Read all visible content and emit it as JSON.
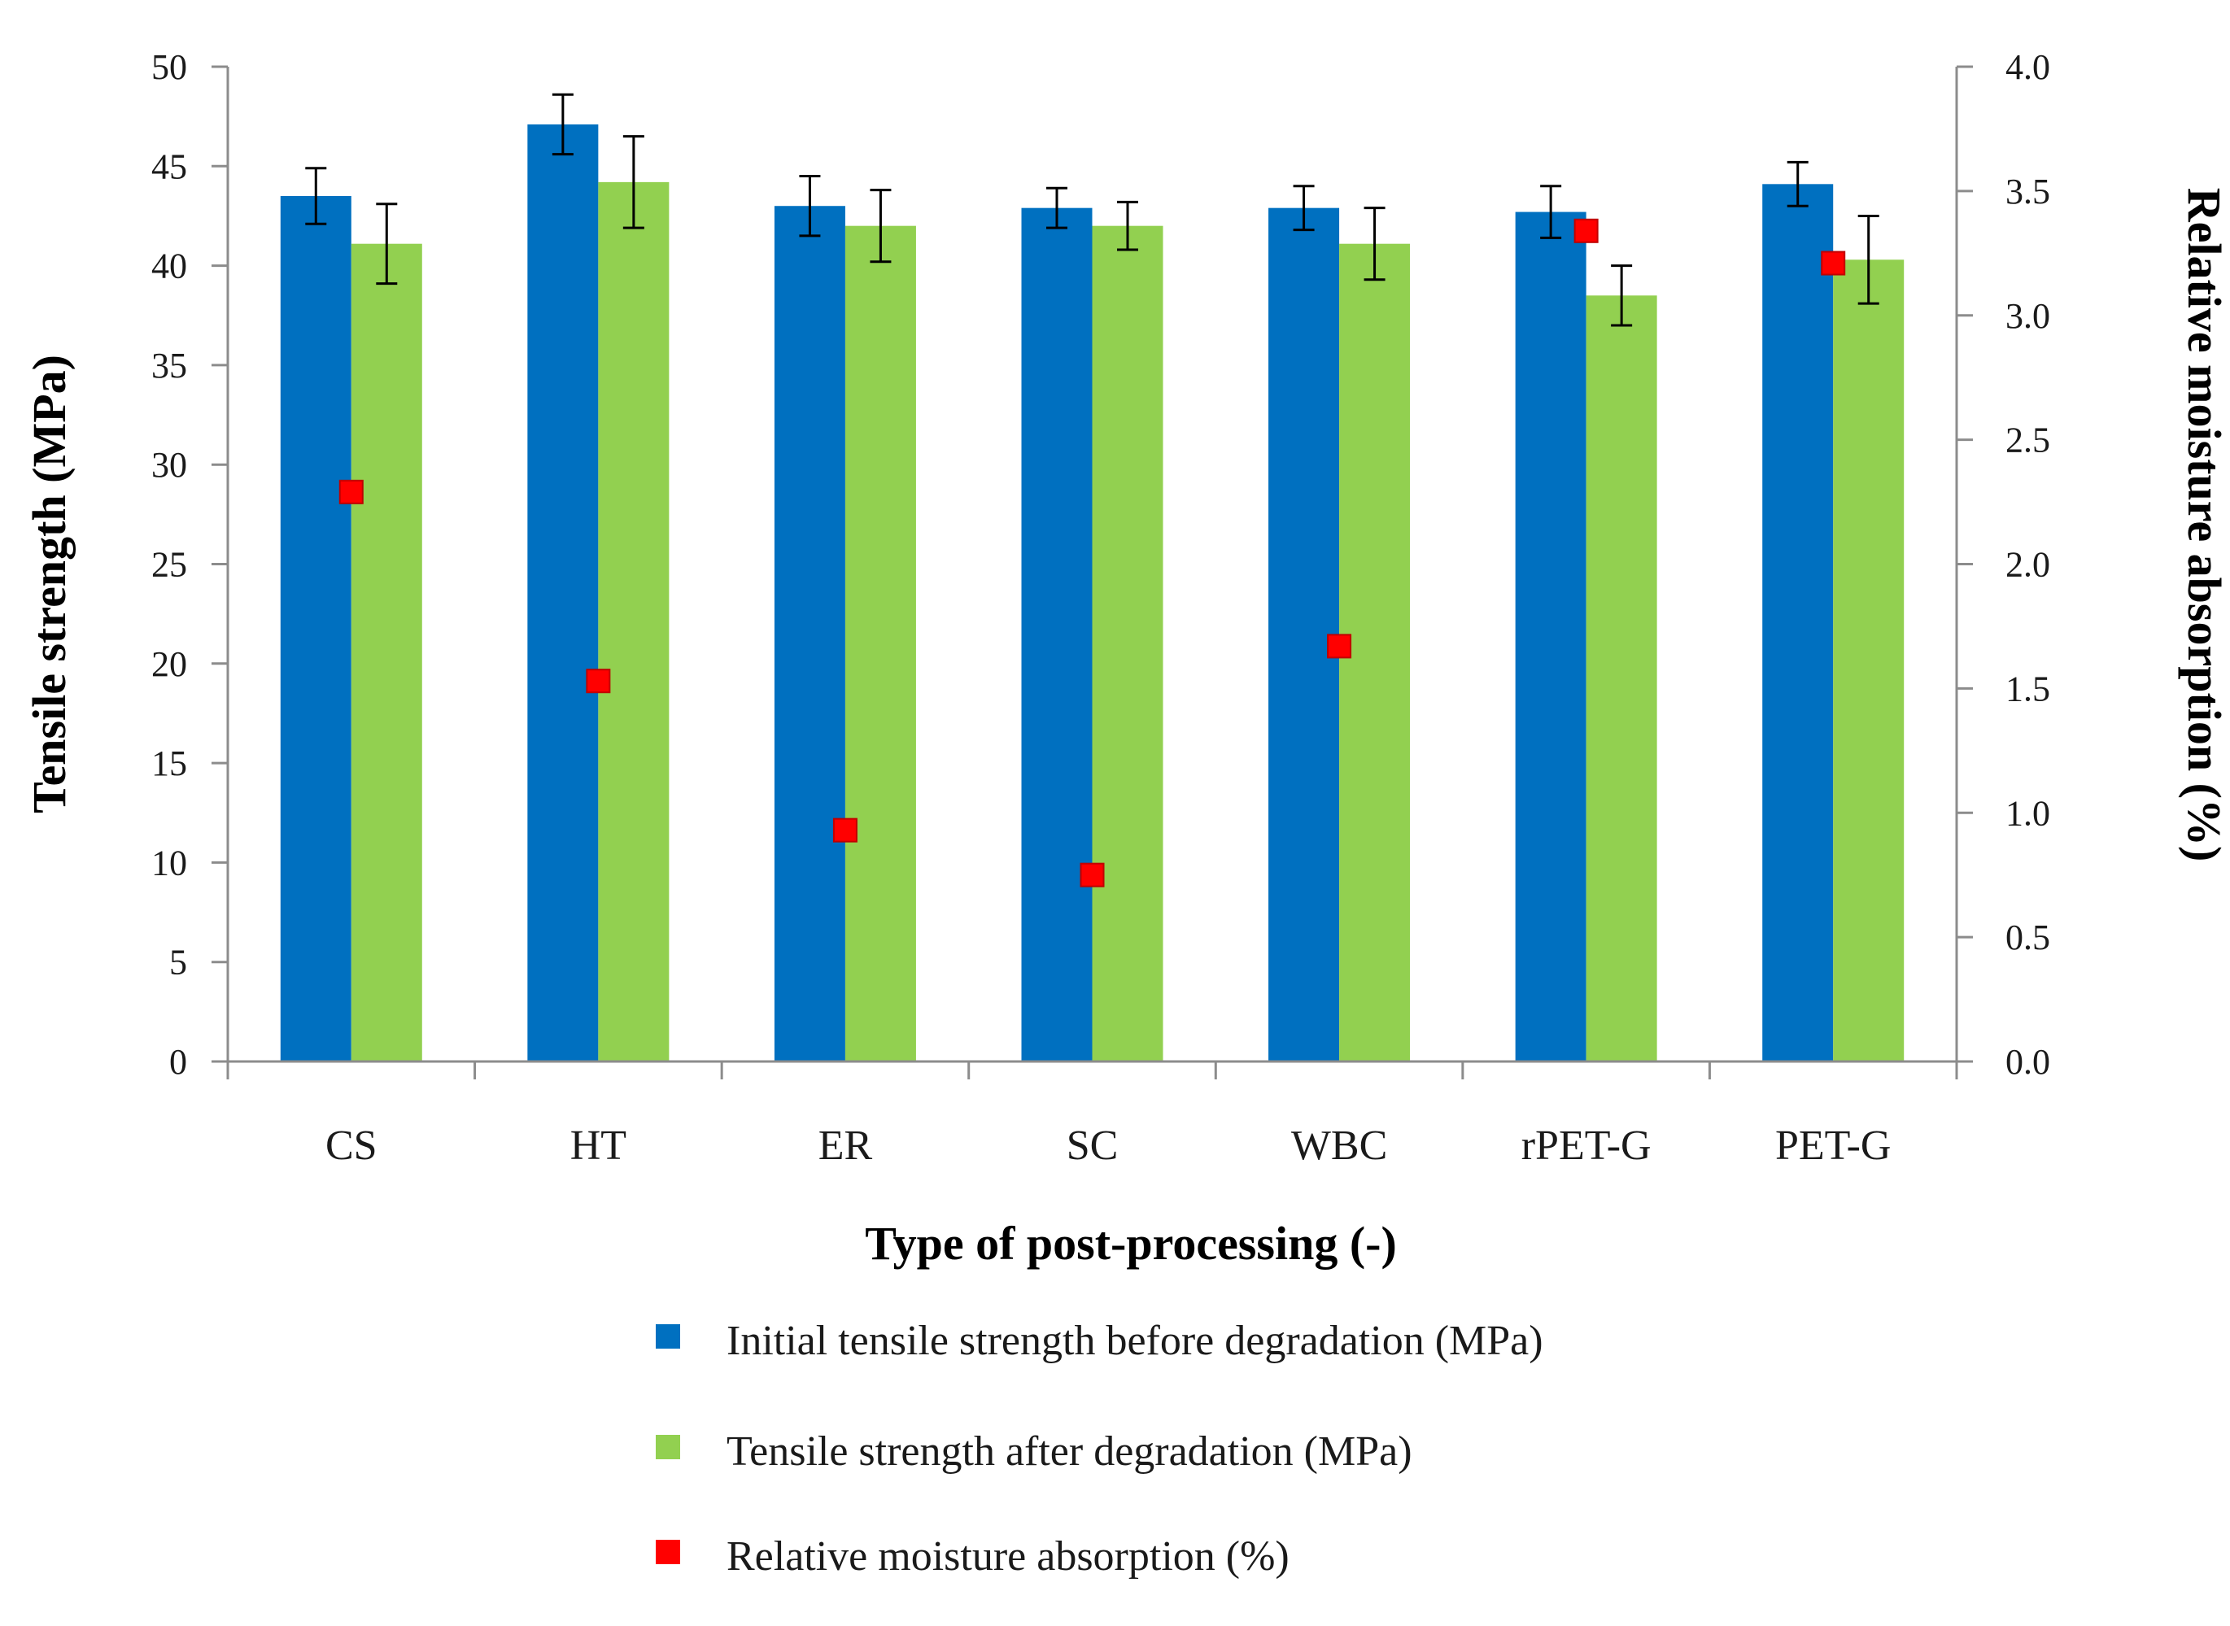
{
  "chart_data": {
    "type": "bar",
    "title": "",
    "xlabel": "Type of post-processing (-)",
    "ylabel": "Tensile strength (MPa)",
    "y2label": "Relative moisture absorption (%)",
    "ylim": [
      0,
      50
    ],
    "y2lim": [
      0,
      4
    ],
    "yticks": [
      "0",
      "5",
      "10",
      "15",
      "20",
      "25",
      "30",
      "35",
      "40",
      "45",
      "50"
    ],
    "y2ticks": [
      "0.0",
      "0.5",
      "1.0",
      "1.5",
      "2.0",
      "2.5",
      "3.0",
      "3.5",
      "4.0"
    ],
    "categories": [
      "CS",
      "HT",
      "ER",
      "SC",
      "WBC",
      "rPET-G",
      "PET-G"
    ],
    "series": [
      {
        "name": "Initial tensile strength before degradation (MPa)",
        "type": "bar",
        "axis": "left",
        "color": "#0070C0",
        "values": [
          43.5,
          47.1,
          43.0,
          42.9,
          42.9,
          42.7,
          44.1
        ],
        "errors": [
          1.4,
          1.5,
          1.5,
          1.0,
          1.1,
          1.3,
          1.1
        ]
      },
      {
        "name": "Tensile strength after degradation (MPa)",
        "type": "bar",
        "axis": "left",
        "color": "#92D050",
        "values": [
          41.1,
          44.2,
          42.0,
          42.0,
          41.1,
          38.5,
          40.3
        ],
        "errors": [
          2.0,
          2.3,
          1.8,
          1.2,
          1.8,
          1.5,
          2.2
        ]
      },
      {
        "name": "Relative moisture absorption (%)",
        "type": "scatter",
        "axis": "right",
        "color": "#FF0000",
        "values": [
          2.29,
          1.53,
          0.93,
          0.75,
          1.67,
          3.34,
          3.21
        ]
      }
    ],
    "legend_position": "bottom"
  }
}
